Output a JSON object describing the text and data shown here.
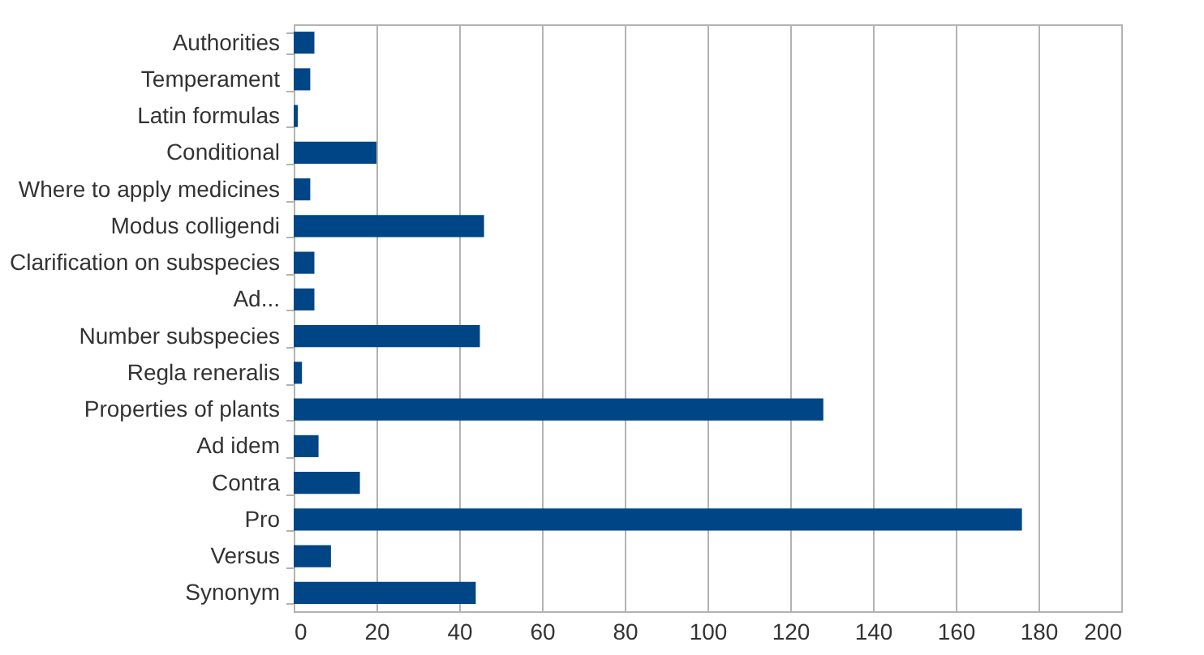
{
  "chart_data": {
    "type": "bar",
    "orientation": "horizontal",
    "categories": [
      "Authorities",
      "Temperament",
      "Latin formulas",
      "Conditional",
      "Where to apply medicines",
      "Modus colligendi",
      "Clarification on subspecies",
      "Ad...",
      "Number subspecies",
      "Regla reneralis",
      "Properties of plants",
      "Ad idem",
      "Contra",
      "Pro",
      "Versus",
      "Synonym"
    ],
    "values": [
      5,
      4,
      1,
      20,
      4,
      46,
      5,
      5,
      45,
      2,
      128,
      6,
      16,
      176,
      9,
      44
    ],
    "color": "#004586",
    "xlim": [
      0,
      200
    ],
    "xticks": [
      0,
      20,
      40,
      60,
      80,
      100,
      120,
      140,
      160,
      180,
      200
    ],
    "grid": "x"
  }
}
